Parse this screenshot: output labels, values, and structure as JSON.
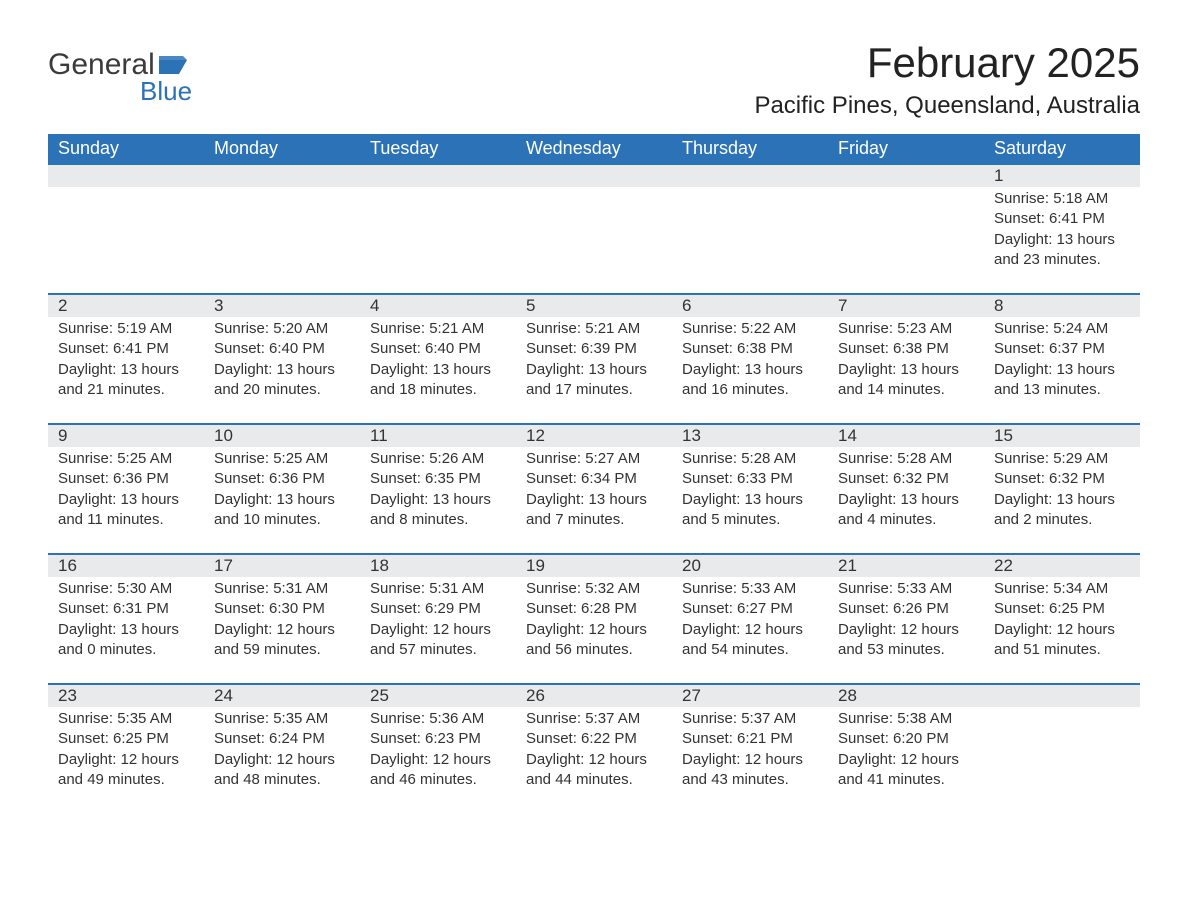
{
  "logo": {
    "general": "General",
    "blue": "Blue",
    "flag_color": "#2c72b6"
  },
  "title": "February 2025",
  "location": "Pacific Pines, Queensland, Australia",
  "colors": {
    "header_bg": "#2c72b6",
    "header_text": "#ffffff",
    "row_border": "#2c72b6",
    "daynum_bg": "#e9eaeb",
    "text": "#333333",
    "background": "#ffffff"
  },
  "columns": [
    "Sunday",
    "Monday",
    "Tuesday",
    "Wednesday",
    "Thursday",
    "Friday",
    "Saturday"
  ],
  "weeks": [
    [
      null,
      null,
      null,
      null,
      null,
      null,
      {
        "n": "1",
        "sr": "Sunrise: 5:18 AM",
        "ss": "Sunset: 6:41 PM",
        "d1": "Daylight: 13 hours",
        "d2": "and 23 minutes."
      }
    ],
    [
      {
        "n": "2",
        "sr": "Sunrise: 5:19 AM",
        "ss": "Sunset: 6:41 PM",
        "d1": "Daylight: 13 hours",
        "d2": "and 21 minutes."
      },
      {
        "n": "3",
        "sr": "Sunrise: 5:20 AM",
        "ss": "Sunset: 6:40 PM",
        "d1": "Daylight: 13 hours",
        "d2": "and 20 minutes."
      },
      {
        "n": "4",
        "sr": "Sunrise: 5:21 AM",
        "ss": "Sunset: 6:40 PM",
        "d1": "Daylight: 13 hours",
        "d2": "and 18 minutes."
      },
      {
        "n": "5",
        "sr": "Sunrise: 5:21 AM",
        "ss": "Sunset: 6:39 PM",
        "d1": "Daylight: 13 hours",
        "d2": "and 17 minutes."
      },
      {
        "n": "6",
        "sr": "Sunrise: 5:22 AM",
        "ss": "Sunset: 6:38 PM",
        "d1": "Daylight: 13 hours",
        "d2": "and 16 minutes."
      },
      {
        "n": "7",
        "sr": "Sunrise: 5:23 AM",
        "ss": "Sunset: 6:38 PM",
        "d1": "Daylight: 13 hours",
        "d2": "and 14 minutes."
      },
      {
        "n": "8",
        "sr": "Sunrise: 5:24 AM",
        "ss": "Sunset: 6:37 PM",
        "d1": "Daylight: 13 hours",
        "d2": "and 13 minutes."
      }
    ],
    [
      {
        "n": "9",
        "sr": "Sunrise: 5:25 AM",
        "ss": "Sunset: 6:36 PM",
        "d1": "Daylight: 13 hours",
        "d2": "and 11 minutes."
      },
      {
        "n": "10",
        "sr": "Sunrise: 5:25 AM",
        "ss": "Sunset: 6:36 PM",
        "d1": "Daylight: 13 hours",
        "d2": "and 10 minutes."
      },
      {
        "n": "11",
        "sr": "Sunrise: 5:26 AM",
        "ss": "Sunset: 6:35 PM",
        "d1": "Daylight: 13 hours",
        "d2": "and 8 minutes."
      },
      {
        "n": "12",
        "sr": "Sunrise: 5:27 AM",
        "ss": "Sunset: 6:34 PM",
        "d1": "Daylight: 13 hours",
        "d2": "and 7 minutes."
      },
      {
        "n": "13",
        "sr": "Sunrise: 5:28 AM",
        "ss": "Sunset: 6:33 PM",
        "d1": "Daylight: 13 hours",
        "d2": "and 5 minutes."
      },
      {
        "n": "14",
        "sr": "Sunrise: 5:28 AM",
        "ss": "Sunset: 6:32 PM",
        "d1": "Daylight: 13 hours",
        "d2": "and 4 minutes."
      },
      {
        "n": "15",
        "sr": "Sunrise: 5:29 AM",
        "ss": "Sunset: 6:32 PM",
        "d1": "Daylight: 13 hours",
        "d2": "and 2 minutes."
      }
    ],
    [
      {
        "n": "16",
        "sr": "Sunrise: 5:30 AM",
        "ss": "Sunset: 6:31 PM",
        "d1": "Daylight: 13 hours",
        "d2": "and 0 minutes."
      },
      {
        "n": "17",
        "sr": "Sunrise: 5:31 AM",
        "ss": "Sunset: 6:30 PM",
        "d1": "Daylight: 12 hours",
        "d2": "and 59 minutes."
      },
      {
        "n": "18",
        "sr": "Sunrise: 5:31 AM",
        "ss": "Sunset: 6:29 PM",
        "d1": "Daylight: 12 hours",
        "d2": "and 57 minutes."
      },
      {
        "n": "19",
        "sr": "Sunrise: 5:32 AM",
        "ss": "Sunset: 6:28 PM",
        "d1": "Daylight: 12 hours",
        "d2": "and 56 minutes."
      },
      {
        "n": "20",
        "sr": "Sunrise: 5:33 AM",
        "ss": "Sunset: 6:27 PM",
        "d1": "Daylight: 12 hours",
        "d2": "and 54 minutes."
      },
      {
        "n": "21",
        "sr": "Sunrise: 5:33 AM",
        "ss": "Sunset: 6:26 PM",
        "d1": "Daylight: 12 hours",
        "d2": "and 53 minutes."
      },
      {
        "n": "22",
        "sr": "Sunrise: 5:34 AM",
        "ss": "Sunset: 6:25 PM",
        "d1": "Daylight: 12 hours",
        "d2": "and 51 minutes."
      }
    ],
    [
      {
        "n": "23",
        "sr": "Sunrise: 5:35 AM",
        "ss": "Sunset: 6:25 PM",
        "d1": "Daylight: 12 hours",
        "d2": "and 49 minutes."
      },
      {
        "n": "24",
        "sr": "Sunrise: 5:35 AM",
        "ss": "Sunset: 6:24 PM",
        "d1": "Daylight: 12 hours",
        "d2": "and 48 minutes."
      },
      {
        "n": "25",
        "sr": "Sunrise: 5:36 AM",
        "ss": "Sunset: 6:23 PM",
        "d1": "Daylight: 12 hours",
        "d2": "and 46 minutes."
      },
      {
        "n": "26",
        "sr": "Sunrise: 5:37 AM",
        "ss": "Sunset: 6:22 PM",
        "d1": "Daylight: 12 hours",
        "d2": "and 44 minutes."
      },
      {
        "n": "27",
        "sr": "Sunrise: 5:37 AM",
        "ss": "Sunset: 6:21 PM",
        "d1": "Daylight: 12 hours",
        "d2": "and 43 minutes."
      },
      {
        "n": "28",
        "sr": "Sunrise: 5:38 AM",
        "ss": "Sunset: 6:20 PM",
        "d1": "Daylight: 12 hours",
        "d2": "and 41 minutes."
      },
      null
    ]
  ]
}
